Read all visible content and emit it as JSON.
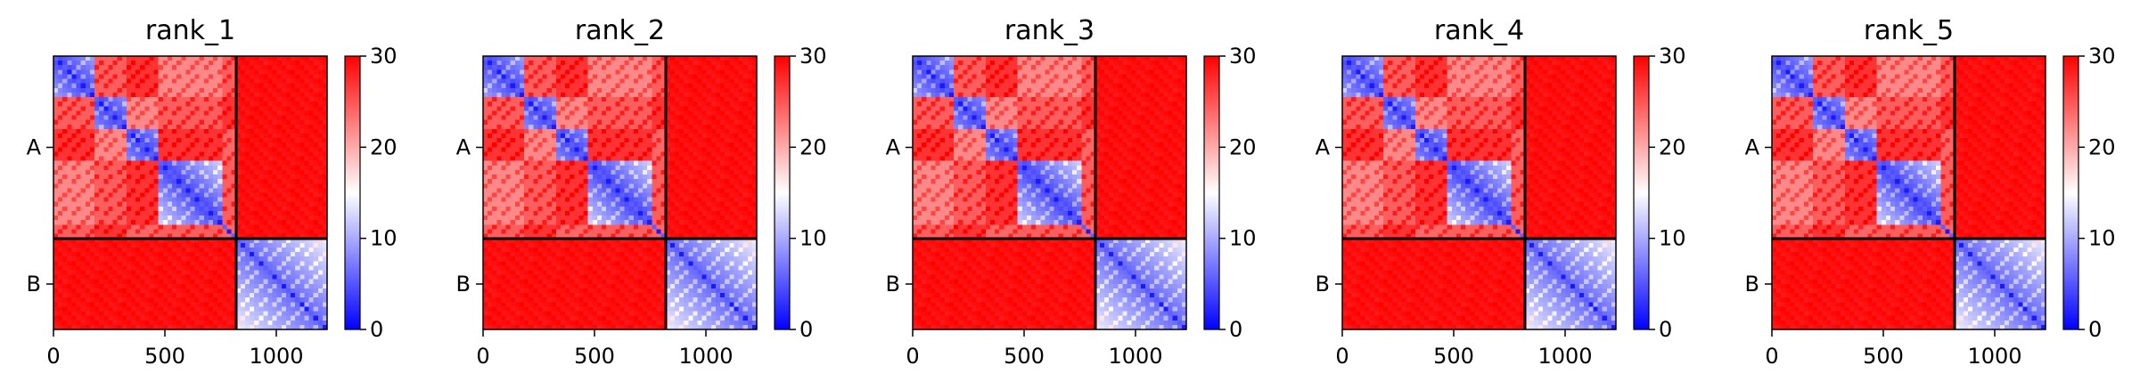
{
  "figure": {
    "panel_titles": [
      "rank_1",
      "rank_2",
      "rank_3",
      "rank_4",
      "rank_5"
    ]
  },
  "colors": {
    "low": "#0000ff",
    "mid": "#ffffff",
    "high": "#ff0000",
    "chain_boundary": "#000000"
  },
  "chart_data": [
    {
      "type": "heatmap",
      "title": "rank_1",
      "x": {
        "ticks": [
          0,
          500,
          1000
        ],
        "range": [
          0,
          1228
        ]
      },
      "y": {
        "ticks": [
          "A",
          "B"
        ],
        "chains": [
          {
            "name": "A",
            "start": 0,
            "end": 820
          },
          {
            "name": "B",
            "start": 820,
            "end": 1228
          }
        ]
      },
      "colorbar": {
        "min": 0,
        "max": 30,
        "ticks": [
          0,
          10,
          20,
          30
        ],
        "colormap": "bwr"
      },
      "domain_breaks_A": [
        190,
        320,
        480,
        760,
        810
      ]
    },
    {
      "type": "heatmap",
      "title": "rank_2",
      "x": {
        "ticks": [
          0,
          500,
          1000
        ],
        "range": [
          0,
          1228
        ]
      },
      "y": {
        "ticks": [
          "A",
          "B"
        ],
        "chains": [
          {
            "name": "A",
            "start": 0,
            "end": 820
          },
          {
            "name": "B",
            "start": 820,
            "end": 1228
          }
        ]
      },
      "colorbar": {
        "min": 0,
        "max": 30,
        "ticks": [
          0,
          10,
          20,
          30
        ],
        "colormap": "bwr"
      },
      "domain_breaks_A": [
        190,
        320,
        480,
        760,
        810
      ]
    },
    {
      "type": "heatmap",
      "title": "rank_3",
      "x": {
        "ticks": [
          0,
          500,
          1000
        ],
        "range": [
          0,
          1228
        ]
      },
      "y": {
        "ticks": [
          "A",
          "B"
        ],
        "chains": [
          {
            "name": "A",
            "start": 0,
            "end": 820
          },
          {
            "name": "B",
            "start": 820,
            "end": 1228
          }
        ]
      },
      "colorbar": {
        "min": 0,
        "max": 30,
        "ticks": [
          0,
          10,
          20,
          30
        ],
        "colormap": "bwr"
      },
      "domain_breaks_A": [
        190,
        320,
        480,
        760,
        810
      ]
    },
    {
      "type": "heatmap",
      "title": "rank_4",
      "x": {
        "ticks": [
          0,
          500,
          1000
        ],
        "range": [
          0,
          1228
        ]
      },
      "y": {
        "ticks": [
          "A",
          "B"
        ],
        "chains": [
          {
            "name": "A",
            "start": 0,
            "end": 820
          },
          {
            "name": "B",
            "start": 820,
            "end": 1228
          }
        ]
      },
      "colorbar": {
        "min": 0,
        "max": 30,
        "ticks": [
          0,
          10,
          20,
          30
        ],
        "colormap": "bwr"
      },
      "domain_breaks_A": [
        190,
        320,
        480,
        760,
        810
      ]
    },
    {
      "type": "heatmap",
      "title": "rank_5",
      "x": {
        "ticks": [
          0,
          500,
          1000
        ],
        "range": [
          0,
          1228
        ]
      },
      "y": {
        "ticks": [
          "A",
          "B"
        ],
        "chains": [
          {
            "name": "A",
            "start": 0,
            "end": 820
          },
          {
            "name": "B",
            "start": 820,
            "end": 1228
          }
        ]
      },
      "colorbar": {
        "min": 0,
        "max": 30,
        "ticks": [
          0,
          10,
          20,
          30
        ],
        "colormap": "bwr"
      },
      "domain_breaks_A": [
        190,
        320,
        480,
        760,
        810
      ]
    }
  ]
}
